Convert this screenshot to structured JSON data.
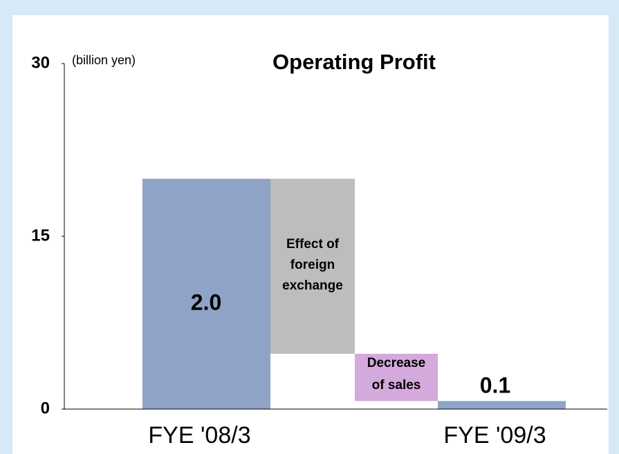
{
  "chart_data": {
    "type": "waterfall",
    "title": "Operating Profit",
    "y_unit": "(billion yen)",
    "categories": [
      "FYE '08/3",
      null,
      null,
      "FYE '09/3"
    ],
    "values": [
      20,
      -15.2,
      -4.1,
      0.7
    ],
    "measure": [
      "absolute",
      "relative",
      "relative",
      "absolute"
    ],
    "colors": [
      "#8fa3c6",
      "#bdbdbd",
      "#d4a9db",
      "#8fa3c6"
    ],
    "step_labels": [
      [
        "Effect of",
        "foreign",
        "exchange"
      ],
      [
        "Decrease",
        "of sales"
      ]
    ],
    "annotations": [
      "2.0",
      "0.1"
    ],
    "ylim": [
      0,
      30
    ],
    "yticks": [
      0,
      15,
      30
    ]
  }
}
